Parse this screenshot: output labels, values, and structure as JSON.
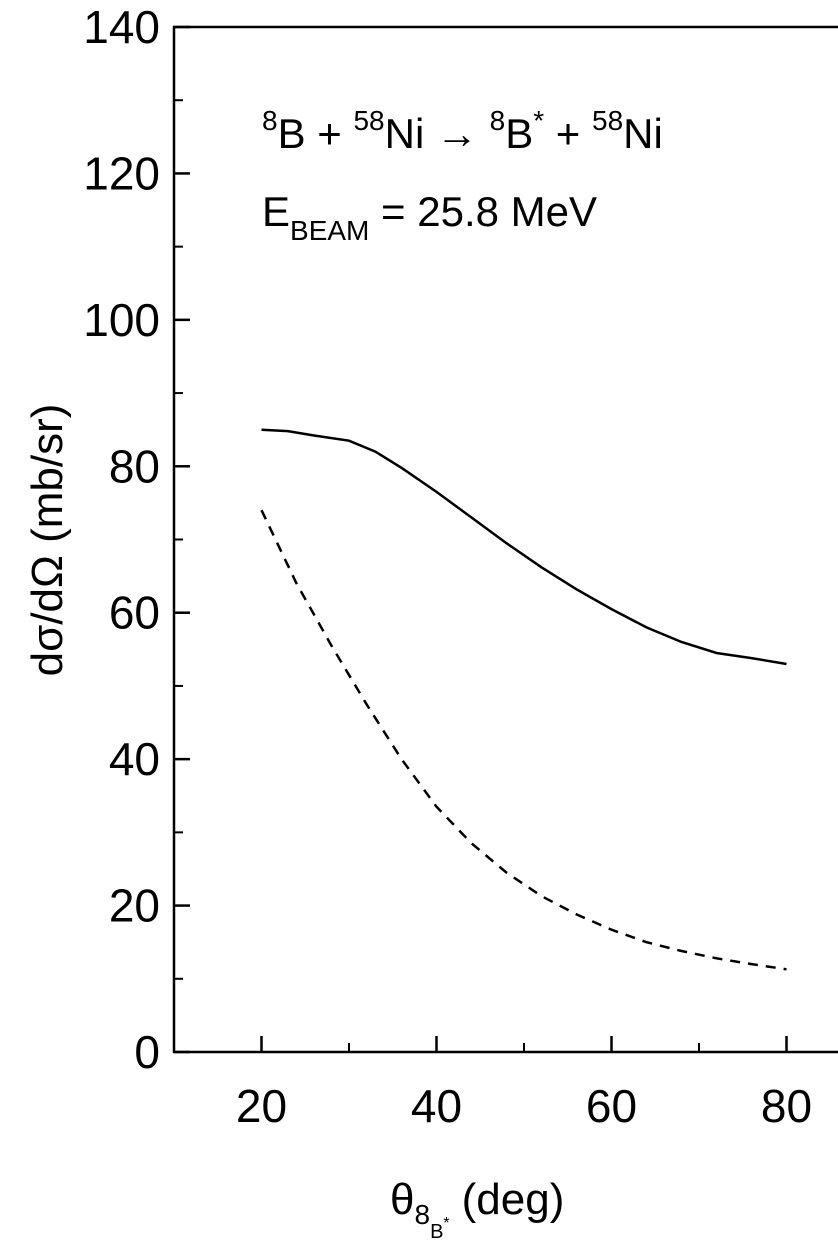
{
  "chart_data": {
    "type": "line",
    "title": "",
    "xlabel": {
      "symbol": "θ",
      "sub": "8",
      "subsub": "B",
      "subsup": "*",
      "unit": "(deg)"
    },
    "ylabel": "dσ/dΩ (mb/sr)",
    "xlim": [
      10,
      90
    ],
    "ylim": [
      0,
      140
    ],
    "x_ticks": [
      20,
      40,
      60,
      80
    ],
    "y_ticks": [
      0,
      20,
      40,
      60,
      80,
      100,
      120,
      140
    ],
    "grid": false,
    "annotations": {
      "reaction": {
        "part1_sup": "8",
        "part1": "B + ",
        "part2_sup": "58",
        "part2": "Ni → ",
        "part3_sup": "8",
        "part3": "B",
        "part3_sup2": "*",
        "part4": " + ",
        "part5_sup": "58",
        "part5": "Ni"
      },
      "energy": {
        "label": "E",
        "sub": "BEAM",
        "value": " = 25.8 MeV"
      }
    },
    "series": [
      {
        "style": "solid",
        "x": [
          20,
          23,
          26,
          30,
          33,
          36,
          40,
          44,
          48,
          52,
          56,
          60,
          64,
          68,
          72,
          76,
          80
        ],
        "y": [
          85,
          84.8,
          84.2,
          83.5,
          82,
          79.8,
          76.5,
          73,
          69.5,
          66.2,
          63.2,
          60.5,
          58,
          56,
          54.5,
          53.8,
          53
        ]
      },
      {
        "style": "dashed",
        "x": [
          20,
          24,
          28,
          32,
          36,
          40,
          44,
          48,
          52,
          56,
          60,
          64,
          68,
          72,
          76,
          80
        ],
        "y": [
          74,
          64,
          55.5,
          47.5,
          40,
          33.5,
          28.5,
          24.5,
          21.3,
          18.8,
          16.7,
          15,
          13.8,
          12.8,
          12,
          11.3
        ]
      }
    ]
  }
}
